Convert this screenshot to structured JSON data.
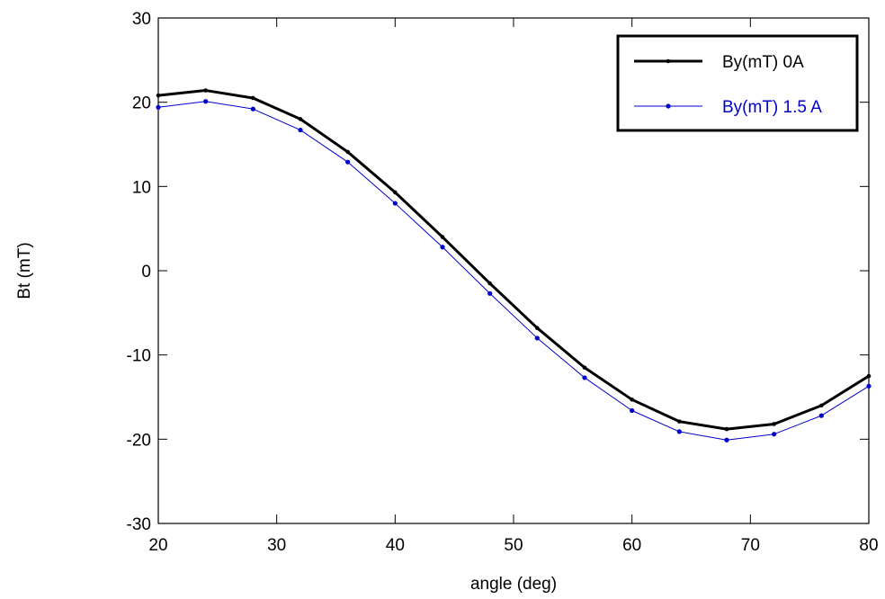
{
  "chart_data": {
    "type": "line",
    "xlabel": "angle (deg)",
    "ylabel": "Bt (mT)",
    "xlim": [
      20,
      80
    ],
    "ylim": [
      -30,
      30
    ],
    "xticks": [
      20,
      30,
      40,
      50,
      60,
      70,
      80
    ],
    "yticks": [
      -30,
      -20,
      -10,
      0,
      10,
      20,
      30
    ],
    "xtick_labels": [
      "20",
      "30",
      "40",
      "50",
      "60",
      "70",
      "80"
    ],
    "ytick_labels": [
      "-30",
      "-20",
      "-10",
      "0",
      "10",
      "20",
      "30"
    ],
    "grid": false,
    "legend_position": "top-right",
    "x": [
      20,
      24,
      28,
      32,
      36,
      40,
      44,
      48,
      52,
      56,
      60,
      64,
      68,
      72,
      76,
      80
    ],
    "series": [
      {
        "name": "By(mT) 0A",
        "color": "#000000",
        "values": [
          20.8,
          21.4,
          20.5,
          18.0,
          14.1,
          9.3,
          4.0,
          -1.5,
          -6.8,
          -11.5,
          -15.3,
          -17.9,
          -18.8,
          -18.2,
          -16.0,
          -12.5
        ]
      },
      {
        "name": "By(mT) 1.5 A",
        "color": "#0000cc",
        "values": [
          19.4,
          20.1,
          19.2,
          16.7,
          12.9,
          8.0,
          2.8,
          -2.7,
          -8.0,
          -12.7,
          -16.6,
          -19.1,
          -20.1,
          -19.4,
          -17.2,
          -13.7
        ]
      }
    ]
  }
}
